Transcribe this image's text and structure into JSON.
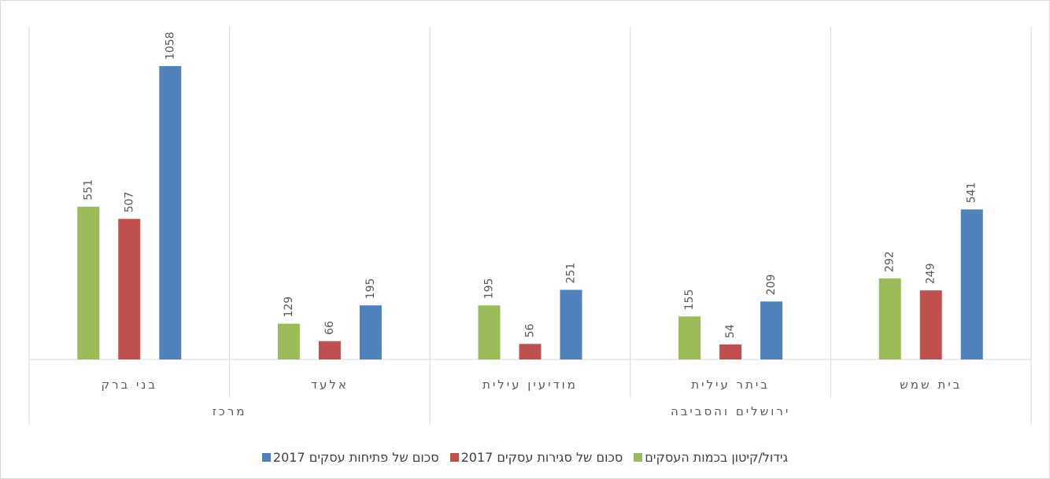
{
  "chart_data": {
    "type": "bar",
    "groups": [
      {
        "name": "מרכז",
        "categories": [
          "בני ברק",
          "אלעד"
        ]
      },
      {
        "name": "ירושלים והסביבה",
        "categories": [
          "מודיעין עילית",
          "ביתר עילית",
          "בית שמש"
        ]
      }
    ],
    "series": [
      {
        "name": "גידול/קיטון בכמות העסקים",
        "color": "#9bbb59",
        "values": [
          551,
          129,
          195,
          155,
          292
        ]
      },
      {
        "name": "סכום של סגירות עסקים 2017",
        "color": "#c0504d",
        "values": [
          507,
          66,
          56,
          54,
          249
        ]
      },
      {
        "name": "סכום של פתיחות עסקים 2017",
        "color": "#4f81bd",
        "values": [
          1058,
          195,
          251,
          209,
          541
        ]
      }
    ],
    "ylim": [
      0,
      1200
    ],
    "legend": "bottom"
  }
}
